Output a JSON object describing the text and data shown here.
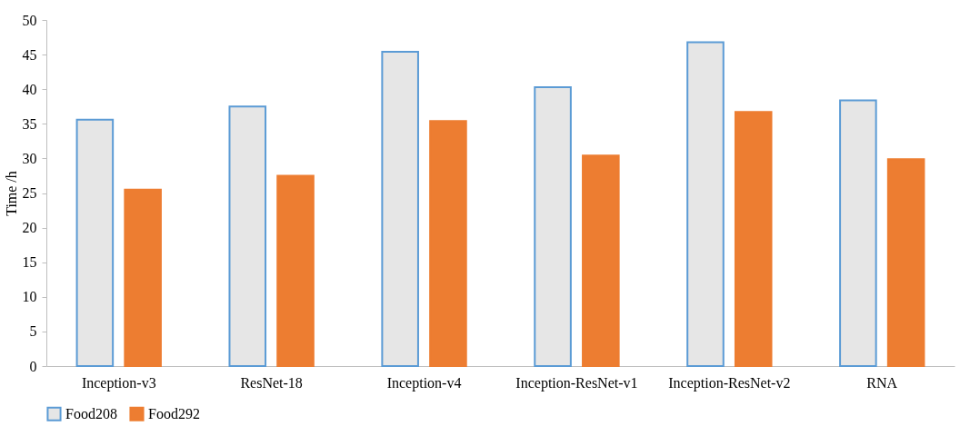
{
  "chart_data": {
    "type": "bar",
    "ylabel": "Time /h",
    "categories": [
      "Inception-v3",
      "ResNet-18",
      "Inception-v4",
      "Inception-ResNet-v1",
      "Inception-ResNet-v2",
      "RNA"
    ],
    "series": [
      {
        "name": "Food208",
        "color": "#e6e6e6",
        "values": [
          35.6,
          37.5,
          45.4,
          40.3,
          46.8,
          38.4
        ]
      },
      {
        "name": "Food292",
        "color": "#ed7d31",
        "values": [
          25.5,
          27.5,
          35.4,
          30.4,
          36.7,
          29.9
        ]
      }
    ],
    "ylim": [
      0,
      50
    ],
    "yticks": [
      0,
      5,
      10,
      15,
      20,
      25,
      30,
      35,
      40,
      45,
      50
    ],
    "grid": false,
    "legend": "bottom"
  }
}
